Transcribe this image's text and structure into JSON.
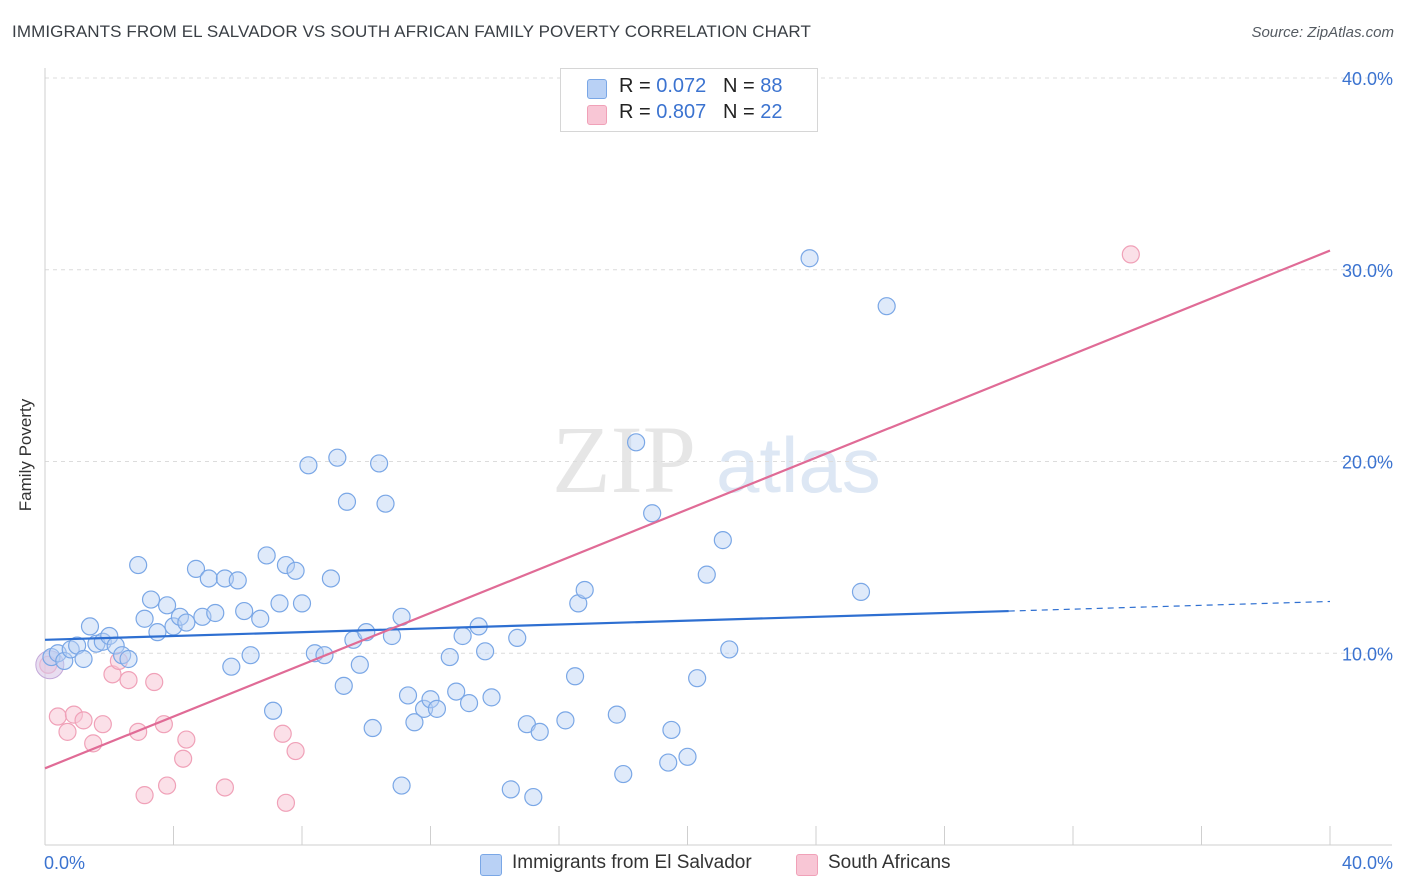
{
  "title": "IMMIGRANTS FROM EL SALVADOR VS SOUTH AFRICAN FAMILY POVERTY CORRELATION CHART",
  "source": "Source: ZipAtlas.com",
  "watermark": {
    "zip": "ZIP",
    "atlas": "atlas"
  },
  "legend": {
    "series1": {
      "r_label": "R = ",
      "r_value": "0.072",
      "n_label": "N = ",
      "n_value": "88"
    },
    "series2": {
      "r_label": "R = ",
      "r_value": "0.807",
      "n_label": "N = ",
      "n_value": "22"
    }
  },
  "chart_data": {
    "type": "scatter",
    "title": "IMMIGRANTS FROM EL SALVADOR VS SOUTH AFRICAN FAMILY POVERTY CORRELATION CHART",
    "xlabel": "",
    "ylabel": "Family Poverty",
    "xlim": [
      0,
      40
    ],
    "ylim": [
      0,
      40
    ],
    "x_tick_labels": [
      "0.0%",
      "40.0%"
    ],
    "y_tick_values": [
      10,
      20,
      30,
      40
    ],
    "y_tick_labels": [
      "10.0%",
      "20.0%",
      "30.0%",
      "40.0%"
    ],
    "grid": true,
    "legend_position": "top-center",
    "colors": {
      "series1": "#7aa7e6",
      "series1_line": "#2e6fd1",
      "series2": "#f0a1b8",
      "series2_line": "#e06b96",
      "tick_text": "#3b73d0"
    },
    "series": [
      {
        "name": "Immigrants from El Salvador",
        "r": 0.072,
        "n": 88,
        "trend": {
          "x0": 0,
          "y0": 10.7,
          "x1": 30,
          "y1": 12.2,
          "dashed_to_x": 40,
          "dashed_to_y": 12.7
        },
        "points": [
          [
            0.2,
            9.8
          ],
          [
            0.4,
            10.0
          ],
          [
            0.6,
            9.6
          ],
          [
            0.8,
            10.2
          ],
          [
            1.0,
            10.4
          ],
          [
            1.2,
            9.7
          ],
          [
            1.4,
            11.4
          ],
          [
            1.6,
            10.5
          ],
          [
            1.8,
            10.6
          ],
          [
            2.0,
            10.9
          ],
          [
            2.2,
            10.4
          ],
          [
            2.4,
            9.9
          ],
          [
            2.6,
            9.7
          ],
          [
            2.9,
            14.6
          ],
          [
            3.1,
            11.8
          ],
          [
            3.3,
            12.8
          ],
          [
            3.5,
            11.1
          ],
          [
            3.8,
            12.5
          ],
          [
            4.0,
            11.4
          ],
          [
            4.2,
            11.9
          ],
          [
            4.4,
            11.6
          ],
          [
            4.7,
            14.4
          ],
          [
            4.9,
            11.9
          ],
          [
            5.1,
            13.9
          ],
          [
            5.3,
            12.1
          ],
          [
            5.6,
            13.9
          ],
          [
            5.8,
            9.3
          ],
          [
            6.0,
            13.8
          ],
          [
            6.2,
            12.2
          ],
          [
            6.4,
            9.9
          ],
          [
            6.7,
            11.8
          ],
          [
            6.9,
            15.1
          ],
          [
            7.1,
            7.0
          ],
          [
            7.3,
            12.6
          ],
          [
            7.5,
            14.6
          ],
          [
            7.8,
            14.3
          ],
          [
            8.0,
            12.6
          ],
          [
            8.2,
            19.8
          ],
          [
            8.4,
            10.0
          ],
          [
            8.7,
            9.9
          ],
          [
            8.9,
            13.9
          ],
          [
            9.1,
            20.2
          ],
          [
            9.3,
            8.3
          ],
          [
            9.4,
            17.9
          ],
          [
            9.6,
            10.7
          ],
          [
            9.8,
            9.4
          ],
          [
            10.0,
            11.1
          ],
          [
            10.2,
            6.1
          ],
          [
            10.4,
            19.9
          ],
          [
            10.6,
            17.8
          ],
          [
            10.8,
            10.9
          ],
          [
            11.1,
            11.9
          ],
          [
            11.3,
            7.8
          ],
          [
            11.5,
            6.4
          ],
          [
            11.8,
            7.1
          ],
          [
            12.0,
            7.6
          ],
          [
            12.2,
            7.1
          ],
          [
            12.6,
            9.8
          ],
          [
            12.8,
            8.0
          ],
          [
            13.0,
            10.9
          ],
          [
            13.2,
            7.4
          ],
          [
            13.5,
            11.4
          ],
          [
            13.7,
            10.1
          ],
          [
            13.9,
            7.7
          ],
          [
            14.5,
            2.9
          ],
          [
            14.7,
            10.8
          ],
          [
            15.0,
            6.3
          ],
          [
            15.2,
            2.5
          ],
          [
            15.4,
            5.9
          ],
          [
            16.2,
            6.5
          ],
          [
            16.5,
            8.8
          ],
          [
            16.6,
            12.6
          ],
          [
            16.8,
            13.3
          ],
          [
            17.8,
            6.8
          ],
          [
            18.0,
            3.7
          ],
          [
            18.4,
            21.0
          ],
          [
            18.9,
            17.3
          ],
          [
            19.4,
            4.3
          ],
          [
            19.5,
            6.0
          ],
          [
            20.0,
            4.6
          ],
          [
            20.3,
            8.7
          ],
          [
            20.6,
            14.1
          ],
          [
            21.1,
            15.9
          ],
          [
            21.3,
            10.2
          ],
          [
            23.8,
            30.6
          ],
          [
            25.4,
            13.2
          ],
          [
            26.2,
            28.1
          ],
          [
            11.1,
            3.1
          ]
        ]
      },
      {
        "name": "South Africans",
        "r": 0.807,
        "n": 22,
        "trend": {
          "x0": 0,
          "y0": 4.0,
          "x1": 40,
          "y1": 31.0
        },
        "points": [
          [
            0.1,
            9.4
          ],
          [
            0.4,
            6.7
          ],
          [
            0.7,
            5.9
          ],
          [
            0.9,
            6.8
          ],
          [
            1.2,
            6.5
          ],
          [
            1.5,
            5.3
          ],
          [
            1.8,
            6.3
          ],
          [
            2.1,
            8.9
          ],
          [
            2.3,
            9.6
          ],
          [
            2.6,
            8.6
          ],
          [
            2.9,
            5.9
          ],
          [
            3.1,
            2.6
          ],
          [
            3.4,
            8.5
          ],
          [
            3.7,
            6.3
          ],
          [
            3.8,
            3.1
          ],
          [
            4.3,
            4.5
          ],
          [
            4.4,
            5.5
          ],
          [
            5.6,
            3.0
          ],
          [
            7.4,
            5.8
          ],
          [
            7.5,
            2.2
          ],
          [
            7.8,
            4.9
          ],
          [
            33.8,
            30.8
          ]
        ]
      }
    ]
  }
}
